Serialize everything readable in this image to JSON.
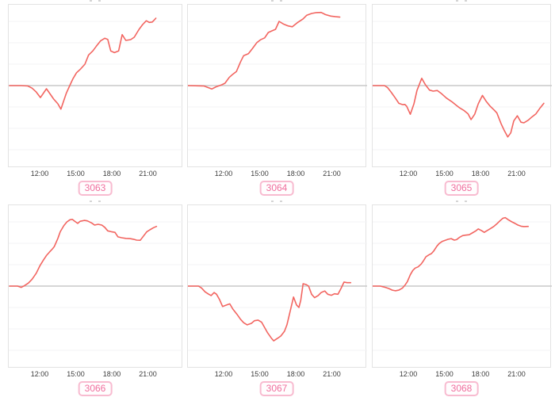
{
  "colors": {
    "line": "#f26560",
    "zero_line": "#c9c9c9",
    "grid_line": "#f3f3f5",
    "panel_border": "#e3e3e3",
    "tick_text": "#3d3d3d",
    "badge_text": "#f06f9e",
    "badge_border": "#f8bbd0",
    "background": "#ffffff"
  },
  "axis": {
    "x_tick_labels": [
      "12:00",
      "15:00",
      "18:00",
      "21:00"
    ],
    "x_tick_hours": [
      12,
      15,
      18,
      21
    ],
    "y_axis_labels_visible": false,
    "baseline_value": 0
  },
  "chart_data": [
    {
      "type": "line",
      "label": "3063",
      "row": 0,
      "col": 0,
      "x_ticks": [
        "12:00",
        "15:00",
        "18:00",
        "21:00"
      ],
      "x_unit": "hour_of_day",
      "ylim": [
        -3.8,
        3.8
      ],
      "baseline": 0,
      "grid": true,
      "points": [
        [
          9.43,
          0
        ],
        [
          10.4,
          0
        ],
        [
          10.95,
          -0.02
        ],
        [
          11.3,
          -0.12
        ],
        [
          11.65,
          -0.3
        ],
        [
          12.0,
          -0.56
        ],
        [
          12.5,
          -0.15
        ],
        [
          13.1,
          -0.63
        ],
        [
          13.45,
          -0.85
        ],
        [
          13.7,
          -1.1
        ],
        [
          14.15,
          -0.36
        ],
        [
          14.45,
          0.02
        ],
        [
          14.7,
          0.32
        ],
        [
          15.0,
          0.6
        ],
        [
          15.35,
          0.78
        ],
        [
          15.7,
          1.0
        ],
        [
          16.0,
          1.43
        ],
        [
          16.35,
          1.62
        ],
        [
          16.65,
          1.84
        ],
        [
          17.0,
          2.09
        ],
        [
          17.35,
          2.21
        ],
        [
          17.6,
          2.16
        ],
        [
          17.85,
          1.62
        ],
        [
          18.15,
          1.54
        ],
        [
          18.5,
          1.62
        ],
        [
          18.8,
          2.38
        ],
        [
          19.1,
          2.11
        ],
        [
          19.5,
          2.15
        ],
        [
          19.8,
          2.26
        ],
        [
          20.2,
          2.63
        ],
        [
          20.5,
          2.85
        ],
        [
          20.8,
          3.03
        ],
        [
          21.05,
          2.95
        ],
        [
          21.3,
          2.97
        ],
        [
          21.6,
          3.15
        ]
      ]
    },
    {
      "type": "line",
      "label": "3064",
      "row": 0,
      "col": 1,
      "x_ticks": [
        "12:00",
        "15:00",
        "18:00",
        "21:00"
      ],
      "x_unit": "hour_of_day",
      "ylim": [
        -3.8,
        3.8
      ],
      "baseline": 0,
      "grid": true,
      "points": [
        [
          8.97,
          0
        ],
        [
          10.3,
          -0.02
        ],
        [
          10.95,
          -0.16
        ],
        [
          11.3,
          -0.06
        ],
        [
          11.8,
          0.04
        ],
        [
          12.05,
          0.11
        ],
        [
          12.4,
          0.38
        ],
        [
          12.7,
          0.53
        ],
        [
          13.0,
          0.66
        ],
        [
          13.35,
          1.12
        ],
        [
          13.6,
          1.4
        ],
        [
          14.0,
          1.49
        ],
        [
          14.35,
          1.74
        ],
        [
          14.7,
          2.01
        ],
        [
          15.0,
          2.14
        ],
        [
          15.35,
          2.23
        ],
        [
          15.65,
          2.48
        ],
        [
          16.0,
          2.57
        ],
        [
          16.25,
          2.63
        ],
        [
          16.55,
          3.0
        ],
        [
          16.9,
          2.88
        ],
        [
          17.3,
          2.79
        ],
        [
          17.65,
          2.75
        ],
        [
          18.1,
          2.95
        ],
        [
          18.55,
          3.12
        ],
        [
          18.85,
          3.29
        ],
        [
          19.25,
          3.37
        ],
        [
          19.65,
          3.41
        ],
        [
          20.05,
          3.42
        ],
        [
          20.4,
          3.32
        ],
        [
          20.85,
          3.25
        ],
        [
          21.25,
          3.22
        ],
        [
          21.6,
          3.2
        ]
      ]
    },
    {
      "type": "line",
      "label": "3065",
      "row": 0,
      "col": 2,
      "x_ticks": [
        "12:00",
        "15:00",
        "18:00",
        "21:00"
      ],
      "x_unit": "hour_of_day",
      "ylim": [
        -3.8,
        3.8
      ],
      "baseline": 0,
      "grid": true,
      "points": [
        [
          8.97,
          0
        ],
        [
          9.95,
          0
        ],
        [
          10.2,
          -0.09
        ],
        [
          10.5,
          -0.3
        ],
        [
          10.85,
          -0.58
        ],
        [
          11.15,
          -0.83
        ],
        [
          11.45,
          -0.89
        ],
        [
          11.65,
          -0.88
        ],
        [
          11.8,
          -0.97
        ],
        [
          12.1,
          -1.34
        ],
        [
          12.4,
          -0.85
        ],
        [
          12.65,
          -0.23
        ],
        [
          13.05,
          0.34
        ],
        [
          13.35,
          0.04
        ],
        [
          13.7,
          -0.21
        ],
        [
          14.0,
          -0.26
        ],
        [
          14.35,
          -0.23
        ],
        [
          14.7,
          -0.38
        ],
        [
          15.1,
          -0.58
        ],
        [
          15.55,
          -0.75
        ],
        [
          15.9,
          -0.91
        ],
        [
          16.2,
          -1.04
        ],
        [
          16.55,
          -1.16
        ],
        [
          16.9,
          -1.32
        ],
        [
          17.15,
          -1.59
        ],
        [
          17.45,
          -1.34
        ],
        [
          17.75,
          -0.85
        ],
        [
          18.1,
          -0.46
        ],
        [
          18.4,
          -0.73
        ],
        [
          18.75,
          -0.97
        ],
        [
          19.1,
          -1.16
        ],
        [
          19.3,
          -1.28
        ],
        [
          19.65,
          -1.78
        ],
        [
          19.9,
          -2.08
        ],
        [
          20.2,
          -2.4
        ],
        [
          20.45,
          -2.21
        ],
        [
          20.7,
          -1.65
        ],
        [
          21.0,
          -1.41
        ],
        [
          21.3,
          -1.71
        ],
        [
          21.55,
          -1.74
        ],
        [
          21.9,
          -1.62
        ],
        [
          22.2,
          -1.47
        ],
        [
          22.55,
          -1.32
        ],
        [
          22.9,
          -1.04
        ],
        [
          23.2,
          -0.83
        ]
      ]
    },
    {
      "type": "line",
      "label": "3066",
      "row": 1,
      "col": 0,
      "x_ticks": [
        "12:00",
        "15:00",
        "18:00",
        "21:00"
      ],
      "x_unit": "hour_of_day",
      "ylim": [
        -3.8,
        3.8
      ],
      "baseline": 0,
      "grid": true,
      "points": [
        [
          9.43,
          0
        ],
        [
          10.1,
          0
        ],
        [
          10.4,
          -0.06
        ],
        [
          10.65,
          0.01
        ],
        [
          11.0,
          0.14
        ],
        [
          11.3,
          0.32
        ],
        [
          11.65,
          0.6
        ],
        [
          11.95,
          0.94
        ],
        [
          12.25,
          1.22
        ],
        [
          12.5,
          1.43
        ],
        [
          12.75,
          1.59
        ],
        [
          13.0,
          1.74
        ],
        [
          13.15,
          1.84
        ],
        [
          13.45,
          2.23
        ],
        [
          13.65,
          2.54
        ],
        [
          13.95,
          2.83
        ],
        [
          14.2,
          3.0
        ],
        [
          14.45,
          3.1
        ],
        [
          14.65,
          3.12
        ],
        [
          14.9,
          3.01
        ],
        [
          15.1,
          2.93
        ],
        [
          15.3,
          3.03
        ],
        [
          15.65,
          3.07
        ],
        [
          15.9,
          3.05
        ],
        [
          16.25,
          2.95
        ],
        [
          16.5,
          2.85
        ],
        [
          16.8,
          2.89
        ],
        [
          17.1,
          2.85
        ],
        [
          17.35,
          2.75
        ],
        [
          17.6,
          2.58
        ],
        [
          17.9,
          2.54
        ],
        [
          18.2,
          2.51
        ],
        [
          18.45,
          2.3
        ],
        [
          18.75,
          2.26
        ],
        [
          19.1,
          2.23
        ],
        [
          19.45,
          2.22
        ],
        [
          19.75,
          2.19
        ],
        [
          20.0,
          2.15
        ],
        [
          20.3,
          2.14
        ],
        [
          20.6,
          2.36
        ],
        [
          20.85,
          2.54
        ],
        [
          21.1,
          2.63
        ],
        [
          21.4,
          2.73
        ],
        [
          21.65,
          2.79
        ]
      ]
    },
    {
      "type": "line",
      "label": "3067",
      "row": 1,
      "col": 1,
      "x_ticks": [
        "12:00",
        "15:00",
        "18:00",
        "21:00"
      ],
      "x_unit": "hour_of_day",
      "ylim": [
        -3.8,
        3.8
      ],
      "baseline": 0,
      "grid": true,
      "points": [
        [
          8.97,
          0
        ],
        [
          9.85,
          0
        ],
        [
          10.1,
          -0.09
        ],
        [
          10.4,
          -0.27
        ],
        [
          10.7,
          -0.38
        ],
        [
          10.9,
          -0.44
        ],
        [
          11.15,
          -0.3
        ],
        [
          11.35,
          -0.38
        ],
        [
          11.6,
          -0.63
        ],
        [
          11.85,
          -0.95
        ],
        [
          12.15,
          -0.89
        ],
        [
          12.45,
          -0.83
        ],
        [
          12.7,
          -1.07
        ],
        [
          13.05,
          -1.32
        ],
        [
          13.35,
          -1.56
        ],
        [
          13.6,
          -1.71
        ],
        [
          13.9,
          -1.81
        ],
        [
          14.25,
          -1.74
        ],
        [
          14.5,
          -1.62
        ],
        [
          14.8,
          -1.59
        ],
        [
          15.1,
          -1.69
        ],
        [
          15.35,
          -1.94
        ],
        [
          15.6,
          -2.19
        ],
        [
          15.9,
          -2.43
        ],
        [
          16.1,
          -2.56
        ],
        [
          16.45,
          -2.43
        ],
        [
          16.7,
          -2.33
        ],
        [
          17.0,
          -2.11
        ],
        [
          17.2,
          -1.81
        ],
        [
          17.45,
          -1.22
        ],
        [
          17.75,
          -0.51
        ],
        [
          18.0,
          -0.88
        ],
        [
          18.2,
          -1.0
        ],
        [
          18.35,
          -0.67
        ],
        [
          18.55,
          0.11
        ],
        [
          18.8,
          0.07
        ],
        [
          19.0,
          0.0
        ],
        [
          19.25,
          -0.38
        ],
        [
          19.5,
          -0.54
        ],
        [
          19.8,
          -0.44
        ],
        [
          20.05,
          -0.3
        ],
        [
          20.35,
          -0.23
        ],
        [
          20.6,
          -0.38
        ],
        [
          20.9,
          -0.43
        ],
        [
          21.15,
          -0.36
        ],
        [
          21.45,
          -0.38
        ],
        [
          21.7,
          -0.11
        ],
        [
          21.95,
          0.19
        ],
        [
          22.2,
          0.16
        ],
        [
          22.5,
          0.16
        ]
      ]
    },
    {
      "type": "line",
      "label": "3068",
      "row": 1,
      "col": 2,
      "x_ticks": [
        "12:00",
        "15:00",
        "18:00",
        "21:00"
      ],
      "x_unit": "hour_of_day",
      "ylim": [
        -3.8,
        3.8
      ],
      "baseline": 0,
      "grid": true,
      "points": [
        [
          8.97,
          0
        ],
        [
          9.6,
          0
        ],
        [
          9.95,
          -0.05
        ],
        [
          10.3,
          -0.11
        ],
        [
          10.6,
          -0.19
        ],
        [
          10.85,
          -0.22
        ],
        [
          11.15,
          -0.19
        ],
        [
          11.45,
          -0.09
        ],
        [
          11.65,
          0.04
        ],
        [
          11.85,
          0.2
        ],
        [
          12.1,
          0.53
        ],
        [
          12.3,
          0.73
        ],
        [
          12.5,
          0.84
        ],
        [
          12.75,
          0.9
        ],
        [
          13.0,
          1.03
        ],
        [
          13.2,
          1.19
        ],
        [
          13.4,
          1.37
        ],
        [
          13.65,
          1.46
        ],
        [
          13.85,
          1.52
        ],
        [
          14.05,
          1.64
        ],
        [
          14.3,
          1.86
        ],
        [
          14.5,
          1.99
        ],
        [
          14.75,
          2.09
        ],
        [
          15.0,
          2.14
        ],
        [
          15.25,
          2.19
        ],
        [
          15.5,
          2.22
        ],
        [
          15.75,
          2.15
        ],
        [
          15.95,
          2.17
        ],
        [
          16.2,
          2.28
        ],
        [
          16.45,
          2.36
        ],
        [
          16.7,
          2.38
        ],
        [
          17.0,
          2.4
        ],
        [
          17.25,
          2.48
        ],
        [
          17.55,
          2.58
        ],
        [
          17.75,
          2.67
        ],
        [
          18.0,
          2.6
        ],
        [
          18.25,
          2.51
        ],
        [
          18.45,
          2.58
        ],
        [
          18.75,
          2.68
        ],
        [
          19.05,
          2.79
        ],
        [
          19.3,
          2.91
        ],
        [
          19.55,
          3.05
        ],
        [
          19.8,
          3.17
        ],
        [
          20.0,
          3.2
        ],
        [
          20.25,
          3.1
        ],
        [
          20.55,
          3.0
        ],
        [
          20.8,
          2.93
        ],
        [
          21.05,
          2.85
        ],
        [
          21.3,
          2.8
        ],
        [
          21.55,
          2.78
        ],
        [
          21.9,
          2.79
        ]
      ]
    }
  ]
}
